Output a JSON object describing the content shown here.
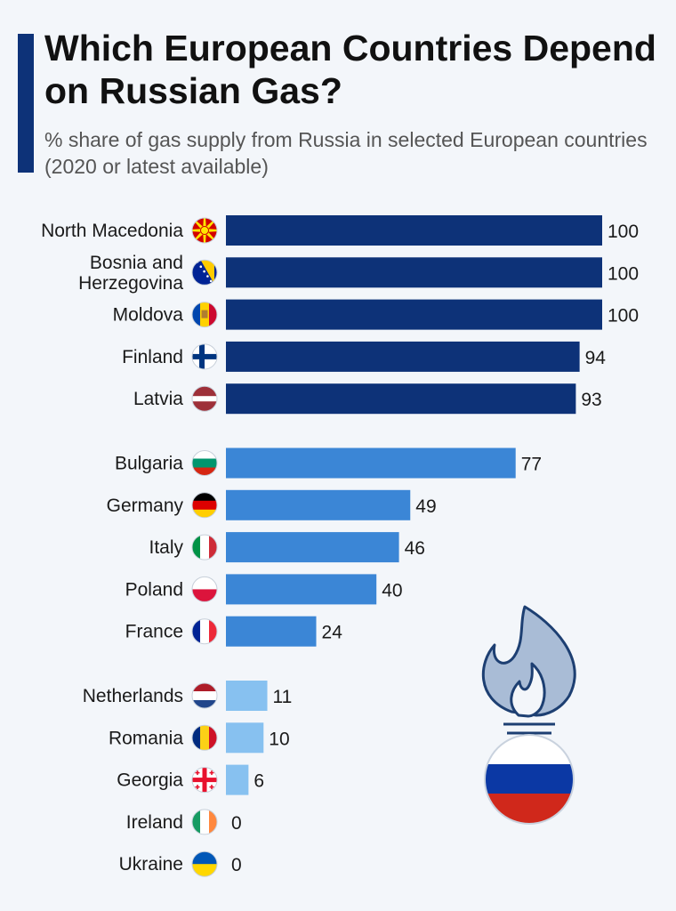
{
  "header": {
    "title": "Which European Countries Depend on Russian Gas?",
    "subtitle": "% share of gas supply from Russia in selected European countries (2020 or latest available)"
  },
  "colors": {
    "accent": "#0d3278",
    "high": "#0d3278",
    "mid": "#3b86d6",
    "low": "#87c1f0",
    "flame_fill": "#a9bcd6",
    "flame_stroke": "#1d3f72",
    "russia_white": "#ffffff",
    "russia_blue": "#0b38a4",
    "russia_red": "#d0281b"
  },
  "illustration": {
    "icon": "gas-flame-icon",
    "flag": "russia-flag"
  },
  "chart_data": {
    "type": "bar",
    "orientation": "horizontal",
    "xlim": [
      0,
      100
    ],
    "grid": false,
    "legend": "none",
    "groups": [
      {
        "tier": "high",
        "color": "#0d3278"
      },
      {
        "tier": "mid",
        "color": "#3b86d6"
      },
      {
        "tier": "low",
        "color": "#87c1f0"
      }
    ],
    "categories": [
      {
        "label": "North Macedonia",
        "flag": "north-macedonia",
        "value": 100,
        "tier": "high"
      },
      {
        "label": "Bosnia and\nHerzegovina",
        "flag": "bosnia-and-herzegovina",
        "value": 100,
        "tier": "high"
      },
      {
        "label": "Moldova",
        "flag": "moldova",
        "value": 100,
        "tier": "high"
      },
      {
        "label": "Finland",
        "flag": "finland",
        "value": 94,
        "tier": "high"
      },
      {
        "label": "Latvia",
        "flag": "latvia",
        "value": 93,
        "tier": "high"
      },
      {
        "label": "Bulgaria",
        "flag": "bulgaria",
        "value": 77,
        "tier": "mid"
      },
      {
        "label": "Germany",
        "flag": "germany",
        "value": 49,
        "tier": "mid"
      },
      {
        "label": "Italy",
        "flag": "italy",
        "value": 46,
        "tier": "mid"
      },
      {
        "label": "Poland",
        "flag": "poland",
        "value": 40,
        "tier": "mid"
      },
      {
        "label": "France",
        "flag": "france",
        "value": 24,
        "tier": "mid"
      },
      {
        "label": "Netherlands",
        "flag": "netherlands",
        "value": 11,
        "tier": "low"
      },
      {
        "label": "Romania",
        "flag": "romania",
        "value": 10,
        "tier": "low"
      },
      {
        "label": "Georgia",
        "flag": "georgia",
        "value": 6,
        "tier": "low"
      },
      {
        "label": "Ireland",
        "flag": "ireland",
        "value": 0,
        "tier": "low"
      },
      {
        "label": "Ukraine",
        "flag": "ukraine",
        "value": 0,
        "tier": "low"
      }
    ]
  }
}
